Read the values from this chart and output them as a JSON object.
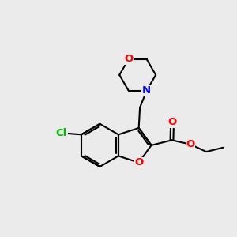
{
  "bg_color": "#ebebeb",
  "bond_color": "#000000",
  "bond_width": 1.5,
  "atom_colors": {
    "O": "#ff0000",
    "N": "#0000ff",
    "Cl": "#00bb00",
    "C": "#000000"
  },
  "font_size": 9.5,
  "figsize": [
    3.0,
    3.0
  ],
  "dpi": 100
}
